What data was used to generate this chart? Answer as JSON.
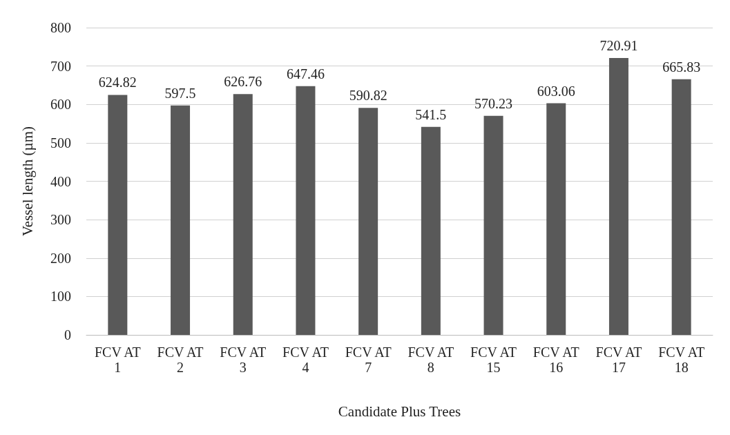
{
  "chart_data": {
    "type": "bar",
    "categories": [
      "FCV AT\n1",
      "FCV AT\n2",
      "FCV AT\n3",
      "FCV AT\n4",
      "FCV AT\n7",
      "FCV AT\n8",
      "FCV AT\n15",
      "FCV AT\n16",
      "FCV AT\n17",
      "FCV AT\n18"
    ],
    "values": [
      624.82,
      597.5,
      626.76,
      647.46,
      590.82,
      541.5,
      570.23,
      603.06,
      720.91,
      665.83
    ],
    "color": "#595959",
    "xlabel": "Candidate Plus Trees",
    "ylabel": "Vessel length (µm)",
    "ylim": [
      0,
      800
    ],
    "yticks": [
      0,
      100,
      200,
      300,
      400,
      500,
      600,
      700,
      800
    ],
    "grid": "y",
    "data_labels": true
  }
}
